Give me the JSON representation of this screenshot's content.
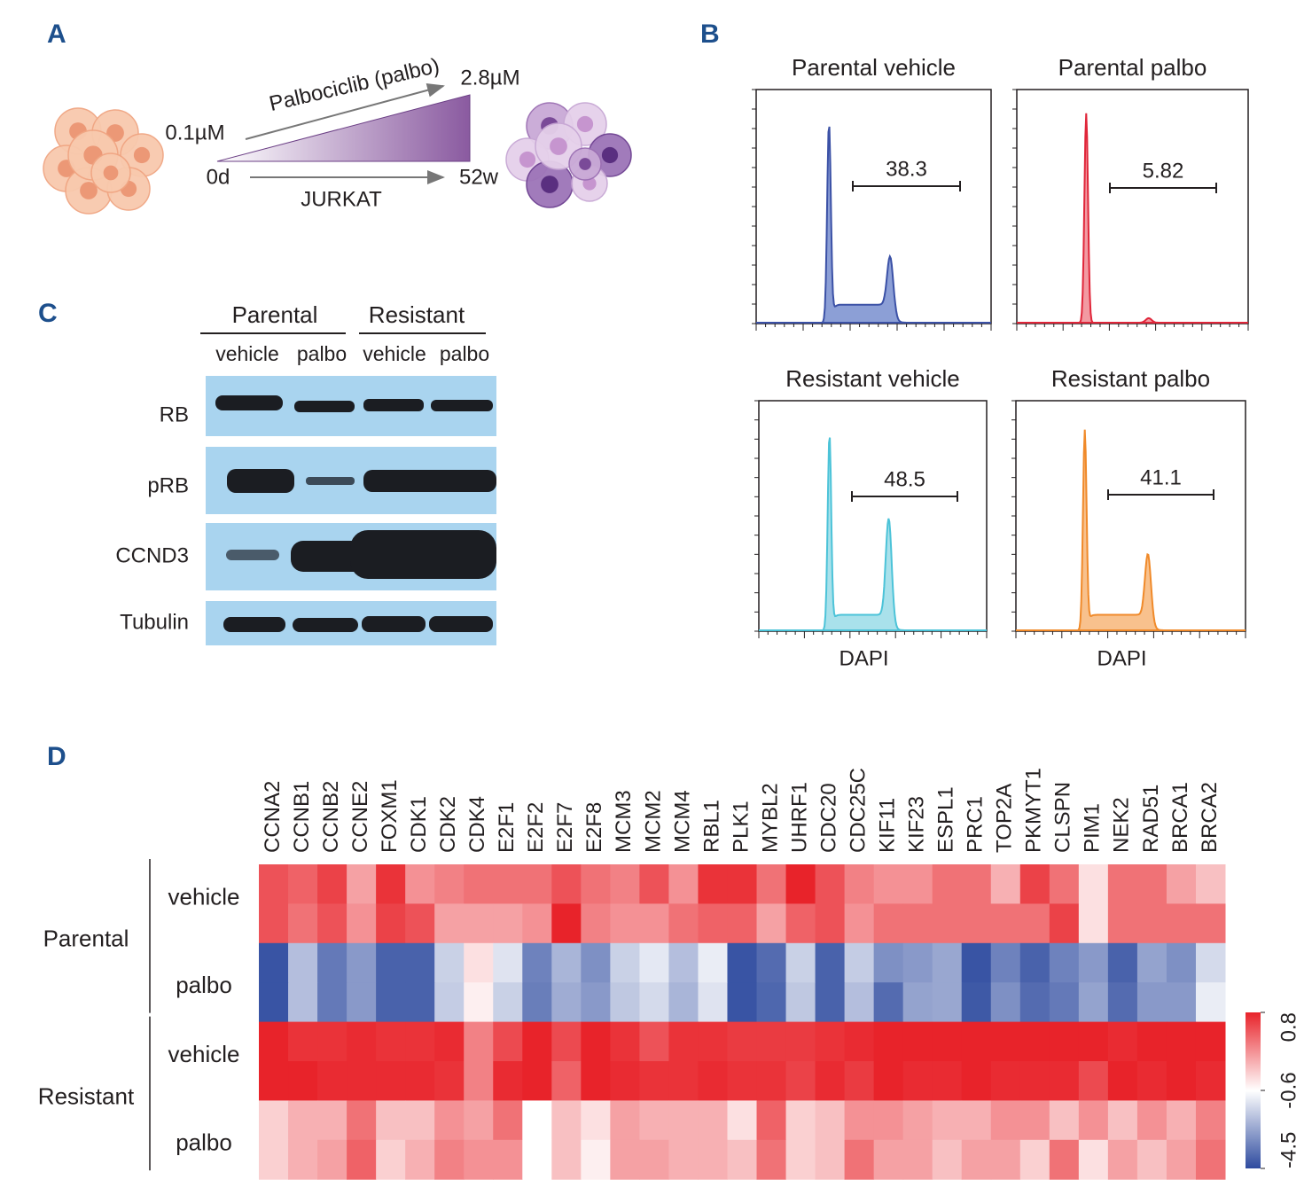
{
  "panel_labels": [
    "A",
    "B",
    "C",
    "D"
  ],
  "panel_a": {
    "drug": "Palbociclib (palbo)",
    "start_dose": "0.1µM",
    "end_dose": "2.8µM",
    "start_time": "0d",
    "end_time": "52w",
    "cell_line": "JURKAT"
  },
  "panel_b": {
    "plots": [
      {
        "title": "Parental vehicle",
        "gate_value": 38.3
      },
      {
        "title": "Parental palbo",
        "gate_value": 5.82
      },
      {
        "title": "Resistant vehicle",
        "gate_value": 48.5,
        "xlabel": "DAPI"
      },
      {
        "title": "Resistant palbo",
        "gate_value": 41.1,
        "xlabel": "DAPI"
      }
    ]
  },
  "panel_c": {
    "groups": [
      "Parental",
      "Resistant"
    ],
    "treatments": [
      "vehicle",
      "palbo",
      "vehicle",
      "palbo"
    ],
    "proteins": [
      "RB",
      "pRB",
      "CCND3",
      "Tubulin"
    ]
  },
  "chart_data": {
    "type": "heatmap",
    "columns": [
      "CCNA2",
      "CCNB1",
      "CCNB2",
      "CCNE2",
      "FOXM1",
      "CDK1",
      "CDK2",
      "CDK4",
      "E2F1",
      "E2F2",
      "E2F7",
      "E2F8",
      "MCM3",
      "MCM2",
      "MCM4",
      "RBL1",
      "PLK1",
      "MYBL2",
      "UHRF1",
      "CDC20",
      "CDC25C",
      "KIF11",
      "KIF23",
      "ESPL1",
      "PRC1",
      "TOP2A",
      "PKMYT1",
      "CLSPN",
      "PIM1",
      "NEK2",
      "RAD51",
      "BRCA1",
      "BRCA2"
    ],
    "row_groups": [
      {
        "name": "Parental",
        "conditions": [
          {
            "name": "vehicle",
            "values": [
              [
                0.5,
                0.4,
                0.6,
                0.0,
                0.7,
                0.1,
                0.2,
                0.3,
                0.3,
                0.3,
                0.5,
                0.3,
                0.2,
                0.5,
                0.1,
                0.7,
                0.7,
                0.3,
                0.8,
                0.5,
                0.2,
                0.1,
                0.1,
                0.3,
                0.3,
                -0.1,
                0.6,
                0.3,
                -0.4,
                0.3,
                0.3,
                0.0,
                -0.2
              ],
              [
                0.5,
                0.3,
                0.5,
                0.1,
                0.6,
                0.5,
                0.0,
                0.0,
                0.0,
                0.1,
                0.8,
                0.2,
                0.1,
                0.1,
                0.3,
                0.4,
                0.4,
                0.0,
                0.4,
                0.5,
                0.1,
                0.3,
                0.3,
                0.3,
                0.3,
                0.3,
                0.3,
                0.6,
                -0.4,
                0.3,
                0.3,
                0.3,
                0.3
              ]
            ]
          },
          {
            "name": "palbo",
            "values": [
              [
                -4.3,
                -2.0,
                -3.5,
                -2.8,
                -4.0,
                -4.0,
                -1.6,
                -0.4,
                -1.2,
                -3.3,
                -2.2,
                -3.0,
                -1.6,
                -1.1,
                -2.0,
                -1.0,
                -4.3,
                -3.8,
                -1.6,
                -4.0,
                -1.7,
                -3.0,
                -2.8,
                -2.5,
                -4.3,
                -3.3,
                -4.0,
                -3.3,
                -2.8,
                -4.0,
                -2.6,
                -3.0,
                -1.4
              ],
              [
                -4.3,
                -2.0,
                -3.5,
                -2.8,
                -4.0,
                -4.0,
                -1.7,
                -0.5,
                -1.6,
                -3.4,
                -2.4,
                -2.8,
                -1.8,
                -1.4,
                -2.2,
                -1.2,
                -4.3,
                -3.9,
                -1.8,
                -4.0,
                -2.0,
                -3.8,
                -2.6,
                -2.5,
                -4.2,
                -3.0,
                -3.8,
                -3.5,
                -2.6,
                -3.8,
                -2.8,
                -2.8,
                -1.0
              ]
            ]
          }
        ]
      },
      {
        "name": "Resistant",
        "conditions": [
          {
            "name": "vehicle",
            "values": [
              [
                0.8,
                0.7,
                0.7,
                0.75,
                0.7,
                0.7,
                0.75,
                0.2,
                0.55,
                0.8,
                0.55,
                0.8,
                0.7,
                0.5,
                0.7,
                0.7,
                0.65,
                0.65,
                0.65,
                0.7,
                0.75,
                0.8,
                0.8,
                0.8,
                0.8,
                0.8,
                0.8,
                0.8,
                0.8,
                0.75,
                0.8,
                0.8,
                0.8
              ],
              [
                0.8,
                0.8,
                0.75,
                0.75,
                0.75,
                0.75,
                0.7,
                0.2,
                0.75,
                0.8,
                0.4,
                0.8,
                0.75,
                0.7,
                0.7,
                0.75,
                0.7,
                0.7,
                0.6,
                0.75,
                0.65,
                0.8,
                0.75,
                0.75,
                0.8,
                0.75,
                0.75,
                0.75,
                0.55,
                0.8,
                0.75,
                0.8,
                0.75
              ]
            ]
          },
          {
            "name": "palbo",
            "values": [
              [
                -0.3,
                -0.1,
                -0.1,
                0.3,
                -0.2,
                -0.2,
                0.1,
                0.0,
                0.3,
                -0.6,
                -0.2,
                -0.4,
                0.0,
                -0.1,
                -0.1,
                -0.1,
                -0.4,
                0.4,
                -0.3,
                -0.2,
                0.1,
                0.1,
                0.0,
                -0.1,
                -0.1,
                0.1,
                0.1,
                -0.2,
                0.1,
                -0.2,
                0.1,
                -0.1,
                0.2
              ],
              [
                -0.3,
                -0.1,
                0.0,
                0.4,
                -0.3,
                -0.1,
                0.2,
                0.1,
                0.1,
                -0.6,
                -0.2,
                -0.5,
                0.0,
                0.0,
                -0.1,
                -0.1,
                -0.2,
                0.3,
                -0.3,
                -0.2,
                0.3,
                0.0,
                0.0,
                -0.2,
                0.0,
                0.0,
                -0.3,
                0.3,
                -0.4,
                0.0,
                -0.2,
                0.0,
                0.3
              ]
            ]
          }
        ]
      }
    ],
    "clim": [
      -4.5,
      0.8
    ],
    "cticks": [
      -4.5,
      -0.6,
      0.8
    ],
    "colors": [
      "#2e4b9f",
      "#ffffff",
      "#e8232a"
    ]
  }
}
